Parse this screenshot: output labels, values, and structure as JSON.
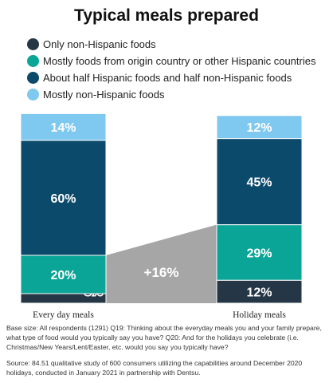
{
  "chart_data": {
    "type": "bar",
    "stacked": true,
    "title": "Typical meals prepared",
    "categories": [
      "Every day meals",
      "Holiday meals"
    ],
    "series": [
      {
        "name": "Only non-Hispanic foods",
        "color": "#253746",
        "values": [
          5,
          12
        ],
        "labels": [
          "5%",
          "12%"
        ]
      },
      {
        "name": "Mostly foods from origin country or other Hispanic countries",
        "color": "#0aa596",
        "values": [
          20,
          29
        ],
        "labels": [
          "20%",
          "29%"
        ]
      },
      {
        "name": "About half Hispanic foods and half non-Hispanic foods",
        "color": "#0b4a6b",
        "values": [
          60,
          45
        ],
        "labels": [
          "60%",
          "45%"
        ]
      },
      {
        "name": "Mostly non-Hispanic foods",
        "color": "#7fc8f0",
        "values": [
          14,
          12
        ],
        "labels": [
          "14%",
          "12%"
        ]
      }
    ],
    "annotation": "+16%",
    "annotation_color": "#a6a6a6",
    "legend_position": "top-left",
    "grid": false
  },
  "footnotes": {
    "base": "Base size: All respondents (1291) Q19: Thinking about the everyday meals you and your family prepare, what type of food would you typically say you have? Q20: And for the holidays you celebrate (i.e. Christmas/New Years/Lent/Easter, etc. would you say you typically have?",
    "source": "Source: 84.51 qualitative study of 600 consumers utilizing the capabilities around December 2020 holidays, conducted in January 2021 in partnership with Dentsu."
  }
}
